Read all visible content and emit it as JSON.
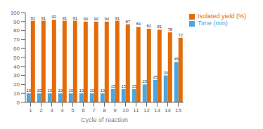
{
  "chart_data": {
    "type": "bar",
    "xlabel": "Cycle of reaction",
    "categories": [
      "1",
      "2",
      "3",
      "4",
      "5",
      "6",
      "7",
      "8",
      "9",
      "10",
      "11",
      "12",
      "13",
      "14",
      "15"
    ],
    "series": [
      {
        "name": "Time (min)",
        "color": "#4ea6dc",
        "values": [
          10,
          10,
          10,
          10,
          10,
          10,
          10,
          10,
          15,
          15,
          15,
          20,
          25,
          30,
          45
        ]
      },
      {
        "name": "Isolated yield (%)",
        "color": "#e36c09",
        "values": [
          91,
          91,
          92,
          91,
          91,
          90,
          90,
          90,
          91,
          87,
          84,
          82,
          81,
          78,
          72
        ]
      }
    ],
    "ylim": [
      0,
      100
    ],
    "yticks": [
      0,
      10,
      20,
      30,
      40,
      50,
      60,
      70,
      80,
      90,
      100
    ],
    "grid": false,
    "legend": "right",
    "data_labels": true
  }
}
